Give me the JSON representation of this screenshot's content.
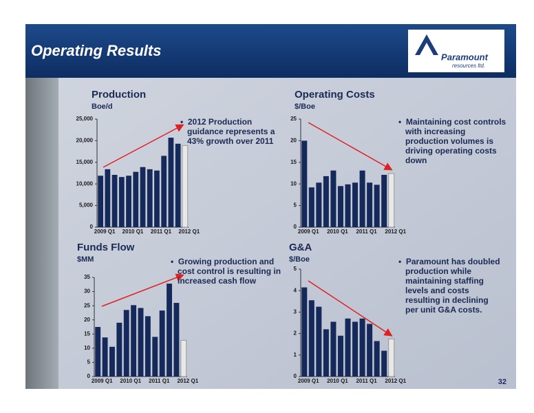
{
  "slide": {
    "title": "Operating Results",
    "logo": {
      "name": "Paramount",
      "tagline": "resources ltd."
    },
    "page_number": "32"
  },
  "chart_data": [
    {
      "type": "bar",
      "title": "Production",
      "subtitle": "Boe/d",
      "note": "2012 Production guidance represents a 43% growth over 2011",
      "categories": [
        "2009 Q1",
        null,
        null,
        null,
        "2010 Q1",
        null,
        null,
        null,
        "2011 Q1",
        null,
        null,
        null,
        "2012 Q1"
      ],
      "values": [
        11900,
        13400,
        12100,
        11600,
        11900,
        12800,
        13900,
        13400,
        13100,
        16500,
        20700,
        19300,
        18900
      ],
      "colors": [
        "#15295a",
        "#15295a",
        "#15295a",
        "#15295a",
        "#15295a",
        "#15295a",
        "#15295a",
        "#15295a",
        "#15295a",
        "#15295a",
        "#15295a",
        "#15295a",
        "#e8e8e8"
      ],
      "ylim": [
        0,
        25000
      ],
      "yticks": [
        0,
        {
          "value": 5000,
          "label": "5,000"
        },
        {
          "value": 10000,
          "label": "10,000"
        },
        {
          "value": 15000,
          "label": "15,000"
        },
        {
          "value": 20000,
          "label": "20,000"
        },
        {
          "value": 25000,
          "label": "25,000"
        }
      ]
    },
    {
      "type": "bar",
      "title": "Operating Costs",
      "subtitle": "$/Boe",
      "note": "Maintaining cost controls with increasing production volumes is driving operating costs down",
      "categories": [
        "2009 Q1",
        null,
        null,
        null,
        "2010 Q1",
        null,
        null,
        null,
        "2011 Q1",
        null,
        null,
        null,
        "2012 Q1"
      ],
      "values": [
        20.0,
        9.2,
        10.3,
        11.8,
        13.1,
        9.5,
        9.9,
        10.3,
        13.1,
        10.3,
        9.8,
        12.1,
        12.4
      ],
      "colors": [
        "#15295a",
        "#15295a",
        "#15295a",
        "#15295a",
        "#15295a",
        "#15295a",
        "#15295a",
        "#15295a",
        "#15295a",
        "#15295a",
        "#15295a",
        "#15295a",
        "#e8e8e8"
      ],
      "ylim": [
        0,
        25
      ],
      "yticks": [
        0,
        5,
        10,
        15,
        20,
        25
      ]
    },
    {
      "type": "bar",
      "title": "Funds Flow",
      "subtitle": "$MM",
      "note": "Growing production and cost control is resulting in increased cash flow",
      "categories": [
        "2009 Q1",
        null,
        null,
        null,
        "2010 Q1",
        null,
        null,
        null,
        "2011 Q1",
        null,
        null,
        null,
        "2012 Q1"
      ],
      "values": [
        17.5,
        13.8,
        10.5,
        19.0,
        23.5,
        25.2,
        24.2,
        21.3,
        14.0,
        23.3,
        32.8,
        26.0,
        12.8
      ],
      "colors": [
        "#15295a",
        "#15295a",
        "#15295a",
        "#15295a",
        "#15295a",
        "#15295a",
        "#15295a",
        "#15295a",
        "#15295a",
        "#15295a",
        "#15295a",
        "#15295a",
        "#e8e8e8"
      ],
      "ylim": [
        0,
        35
      ],
      "yticks": [
        0,
        5,
        10,
        15,
        20,
        25,
        30,
        35
      ]
    },
    {
      "type": "bar",
      "title": "G&A",
      "subtitle": "$/Boe",
      "note": "Paramount has doubled production while maintaining staffing levels and costs resulting in declining per unit G&A costs.",
      "categories": [
        "2009 Q1",
        null,
        null,
        null,
        "2010 Q1",
        null,
        null,
        null,
        "2011 Q1",
        null,
        null,
        null,
        "2012 Q1"
      ],
      "values": [
        4.15,
        3.55,
        3.25,
        2.2,
        2.55,
        1.9,
        2.7,
        2.55,
        2.7,
        2.45,
        1.65,
        1.2,
        1.75
      ],
      "colors": [
        "#15295a",
        "#15295a",
        "#15295a",
        "#15295a",
        "#15295a",
        "#15295a",
        "#15295a",
        "#15295a",
        "#15295a",
        "#15295a",
        "#15295a",
        "#15295a",
        "#e8e8e8"
      ],
      "ylim": [
        0,
        5
      ],
      "yticks": [
        0,
        1,
        2,
        3,
        4,
        5
      ]
    }
  ]
}
